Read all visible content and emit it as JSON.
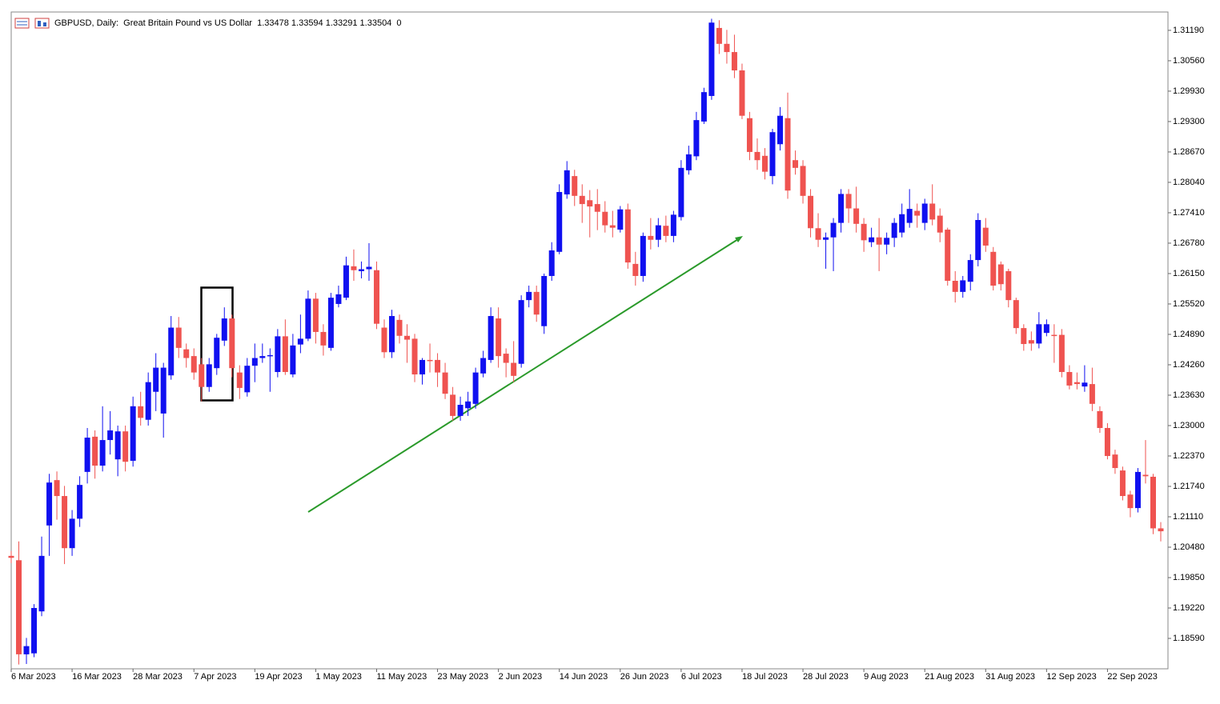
{
  "chart_data": {
    "type": "candlestick",
    "title": "GBPUSD, Daily:  Great Britain Pound vs US Dollar  1.33478 1.33594 1.33291 1.33504  0",
    "up_color": "#1010f0",
    "down_color": "#ef5350",
    "categories": [
      "6 Mar 2023",
      null,
      null,
      null,
      null,
      null,
      null,
      null,
      "16 Mar 2023",
      null,
      null,
      null,
      null,
      null,
      null,
      null,
      "28 Mar 2023",
      null,
      null,
      null,
      null,
      null,
      null,
      null,
      "7 Apr 2023",
      null,
      null,
      null,
      null,
      null,
      null,
      null,
      "19 Apr 2023",
      null,
      null,
      null,
      null,
      null,
      null,
      null,
      "1 May 2023",
      null,
      null,
      null,
      null,
      null,
      null,
      null,
      "11 May 2023",
      null,
      null,
      null,
      null,
      null,
      null,
      null,
      "23 May 2023",
      null,
      null,
      null,
      null,
      null,
      null,
      null,
      "2 Jun 2023",
      null,
      null,
      null,
      null,
      null,
      null,
      null,
      "14 Jun 2023",
      null,
      null,
      null,
      null,
      null,
      null,
      null,
      "26 Jun 2023",
      null,
      null,
      null,
      null,
      null,
      null,
      null,
      "6 Jul 2023",
      null,
      null,
      null,
      null,
      null,
      null,
      null,
      "18 Jul 2023",
      null,
      null,
      null,
      null,
      null,
      null,
      null,
      "28 Jul 2023",
      null,
      null,
      null,
      null,
      null,
      null,
      null,
      "9 Aug 2023",
      null,
      null,
      null,
      null,
      null,
      null,
      null,
      "21 Aug 2023",
      null,
      null,
      null,
      null,
      null,
      null,
      null,
      "31 Aug 2023",
      null,
      null,
      null,
      null,
      null,
      null,
      null,
      "12 Sep 2023",
      null,
      null,
      null,
      null,
      null,
      null,
      null,
      "22 Sep 2023",
      null,
      null,
      null,
      null,
      null,
      null,
      null
    ],
    "open": [
      1.203,
      1.2021,
      1.1826,
      1.1828,
      1.1915,
      1.2093,
      1.2187,
      1.2154,
      1.2046,
      1.2107,
      1.2204,
      1.2277,
      1.2217,
      1.227,
      1.223,
      1.2288,
      1.2227,
      1.234,
      1.2312,
      1.237,
      1.2325,
      1.2404,
      1.2503,
      1.2458,
      1.2444,
      1.2427,
      1.238,
      1.2419,
      1.2476,
      1.2522,
      1.241,
      1.2369,
      1.2424,
      1.244,
      1.2444,
      1.2411,
      1.2485,
      1.2406,
      1.2468,
      1.248,
      1.2563,
      1.2494,
      1.2461,
      1.2552,
      1.2565,
      1.263,
      1.262,
      1.2624,
      1.2622,
      1.2503,
      1.2452,
      1.2519,
      1.2486,
      1.248,
      1.2406,
      1.2436,
      1.2436,
      1.241,
      1.2364,
      1.232,
      1.2336,
      1.2345,
      1.2408,
      1.2436,
      1.2522,
      1.2449,
      1.243,
      1.2428,
      1.256,
      1.2577,
      1.2506,
      1.261,
      1.266,
      1.2779,
      1.2817,
      1.2776,
      1.2767,
      1.2759,
      1.2743,
      1.2715,
      1.2706,
      1.2748,
      1.2635,
      1.261,
      1.2693,
      1.2685,
      1.2714,
      1.2693,
      1.2732,
      1.2829,
      1.2858,
      1.293,
      1.2983,
      1.3124,
      1.3091,
      1.3074,
      1.3036,
      1.2937,
      1.2867,
      1.2859,
      1.2817,
      1.2883,
      1.2937,
      1.285,
      1.2838,
      1.2776,
      1.2709,
      1.2685,
      1.269,
      1.272,
      1.278,
      1.275,
      1.2718,
      1.268,
      1.269,
      1.2675,
      1.2689,
      1.27,
      1.272,
      1.2745,
      1.272,
      1.276,
      1.2735,
      1.2706,
      1.26,
      1.2577,
      1.2598,
      1.2643,
      1.271,
      1.266,
      1.2634,
      1.262,
      1.256,
      1.2502,
      1.2477,
      1.247,
      1.2492,
      1.2488,
      1.2488,
      1.2411,
      1.239,
      1.2381,
      1.2386,
      1.233,
      1.2295,
      1.224,
      1.2207,
      1.2157,
      1.2129,
      1.2198,
      1.2194,
      1.2087
    ],
    "high": [
      1.204,
      1.206,
      1.186,
      1.193,
      1.207,
      1.22,
      1.2205,
      1.2175,
      1.2125,
      1.2195,
      1.2295,
      1.229,
      1.234,
      1.233,
      1.23,
      1.23,
      1.236,
      1.237,
      1.241,
      1.245,
      1.243,
      1.2527,
      1.2525,
      1.247,
      1.246,
      1.244,
      1.244,
      1.249,
      1.2545,
      1.253,
      1.2425,
      1.244,
      1.247,
      1.247,
      1.246,
      1.25,
      1.252,
      1.249,
      1.253,
      1.258,
      1.2575,
      1.251,
      1.2575,
      1.259,
      1.265,
      1.2665,
      1.264,
      1.2678,
      1.264,
      1.252,
      1.254,
      1.253,
      1.251,
      1.249,
      1.244,
      1.247,
      1.245,
      1.243,
      1.238,
      1.236,
      1.237,
      1.242,
      1.2455,
      1.2545,
      1.2545,
      1.246,
      1.2475,
      1.257,
      1.259,
      1.259,
      1.2615,
      1.268,
      1.28,
      1.2848,
      1.283,
      1.28,
      1.2788,
      1.279,
      1.2765,
      1.2745,
      1.2755,
      1.276,
      1.266,
      1.27,
      1.273,
      1.273,
      1.2735,
      1.2745,
      1.285,
      1.288,
      1.295,
      1.3,
      1.3143,
      1.314,
      1.312,
      1.311,
      1.305,
      1.295,
      1.2895,
      1.2875,
      1.2915,
      1.296,
      1.299,
      1.287,
      1.285,
      1.279,
      1.274,
      1.27,
      1.273,
      1.279,
      1.279,
      1.2795,
      1.273,
      1.271,
      1.273,
      1.27,
      1.273,
      1.276,
      1.279,
      1.276,
      1.277,
      1.28,
      1.275,
      1.271,
      1.262,
      1.261,
      1.2655,
      1.274,
      1.273,
      1.267,
      1.264,
      1.2625,
      1.2565,
      1.251,
      1.2495,
      1.2535,
      1.252,
      1.251,
      1.25,
      1.2425,
      1.241,
      1.2425,
      1.242,
      1.234,
      1.2305,
      1.225,
      1.2215,
      1.2165,
      1.2212,
      1.227,
      1.22,
      1.21
    ],
    "low": [
      1.2015,
      1.1805,
      1.1806,
      1.182,
      1.1905,
      1.203,
      1.2105,
      1.2013,
      1.203,
      1.209,
      1.218,
      1.219,
      1.2205,
      1.224,
      1.2195,
      1.2205,
      1.2215,
      1.23,
      1.23,
      1.233,
      1.2275,
      1.2395,
      1.244,
      1.242,
      1.2395,
      1.235,
      1.237,
      1.2405,
      1.2465,
      1.24,
      1.2355,
      1.236,
      1.239,
      1.243,
      1.237,
      1.24,
      1.2405,
      1.24,
      1.245,
      1.2475,
      1.247,
      1.2445,
      1.2455,
      1.2545,
      1.256,
      1.26,
      1.2605,
      1.26,
      1.25,
      1.244,
      1.244,
      1.247,
      1.243,
      1.239,
      1.2385,
      1.241,
      1.238,
      1.2355,
      1.231,
      1.231,
      1.232,
      1.2335,
      1.24,
      1.243,
      1.242,
      1.24,
      1.239,
      1.242,
      1.2545,
      1.2515,
      1.249,
      1.26,
      1.2655,
      1.277,
      1.2755,
      1.272,
      1.269,
      1.2705,
      1.27,
      1.269,
      1.27,
      1.2625,
      1.259,
      1.2598,
      1.2665,
      1.267,
      1.268,
      1.268,
      1.2725,
      1.282,
      1.285,
      1.2925,
      1.2975,
      1.307,
      1.305,
      1.302,
      1.2935,
      1.285,
      1.283,
      1.281,
      1.28,
      1.287,
      1.277,
      1.282,
      1.276,
      1.269,
      1.267,
      1.2625,
      1.262,
      1.27,
      1.272,
      1.27,
      1.266,
      1.267,
      1.262,
      1.2655,
      1.267,
      1.269,
      1.271,
      1.271,
      1.2705,
      1.2715,
      1.268,
      1.259,
      1.2555,
      1.2565,
      1.258,
      1.263,
      1.266,
      1.258,
      1.258,
      1.2545,
      1.249,
      1.2455,
      1.2455,
      1.246,
      1.2485,
      1.243,
      1.24,
      1.2375,
      1.2375,
      1.237,
      1.233,
      1.2285,
      1.223,
      1.22,
      1.2145,
      1.211,
      1.212,
      1.218,
      1.2075,
      1.206
    ],
    "close": [
      1.2026,
      1.1826,
      1.1843,
      1.1922,
      1.203,
      1.2182,
      1.2154,
      1.2046,
      1.2107,
      1.2177,
      1.2275,
      1.2217,
      1.227,
      1.229,
      1.2288,
      1.2225,
      1.234,
      1.2316,
      1.239,
      1.242,
      1.242,
      1.2503,
      1.2461,
      1.244,
      1.241,
      1.238,
      1.2427,
      1.2482,
      1.2522,
      1.2419,
      1.2378,
      1.2424,
      1.244,
      1.2444,
      1.2446,
      1.2485,
      1.2411,
      1.2466,
      1.248,
      1.2563,
      1.2494,
      1.2466,
      1.2565,
      1.2572,
      1.2632,
      1.2622,
      1.2624,
      1.2629,
      1.2511,
      1.2452,
      1.2527,
      1.2486,
      1.2478,
      1.2406,
      1.2436,
      1.2434,
      1.241,
      1.2366,
      1.232,
      1.2343,
      1.235,
      1.241,
      1.244,
      1.2527,
      1.2444,
      1.243,
      1.2403,
      1.256,
      1.2577,
      1.253,
      1.261,
      1.2663,
      1.2784,
      1.2829,
      1.2776,
      1.2759,
      1.2754,
      1.2743,
      1.2715,
      1.271,
      1.2748,
      1.2638,
      1.261,
      1.2693,
      1.2685,
      1.2715,
      1.2693,
      1.2737,
      1.2834,
      1.2862,
      1.2933,
      1.2991,
      1.3135,
      1.3091,
      1.3074,
      1.3036,
      1.2942,
      1.2867,
      1.285,
      1.2826,
      1.2908,
      1.2942,
      1.2787,
      1.2834,
      1.2776,
      1.2709,
      1.2685,
      1.269,
      1.272,
      1.278,
      1.275,
      1.2718,
      1.2684,
      1.269,
      1.2675,
      1.2689,
      1.272,
      1.2738,
      1.2749,
      1.2735,
      1.276,
      1.2727,
      1.27,
      1.26,
      1.2577,
      1.2601,
      1.2643,
      1.2726,
      1.2673,
      1.259,
      1.2593,
      1.256,
      1.2502,
      1.2469,
      1.247,
      1.251,
      1.251,
      1.2486,
      1.2411,
      1.2383,
      1.2386,
      1.2389,
      1.2345,
      1.2295,
      1.2237,
      1.2212,
      1.2154,
      1.2129,
      1.2204,
      1.2195,
      1.2087,
      1.2081
    ],
    "ylim": [
      1.1796,
      1.3157
    ],
    "yticks": [
      {
        "value": 1.3119,
        "label": "1.31190"
      },
      {
        "value": 1.3056,
        "label": "1.30560"
      },
      {
        "value": 1.2993,
        "label": "1.29930"
      },
      {
        "value": 1.293,
        "label": "1.29300"
      },
      {
        "value": 1.2867,
        "label": "1.28670"
      },
      {
        "value": 1.2804,
        "label": "1.28040"
      },
      {
        "value": 1.2741,
        "label": "1.27410"
      },
      {
        "value": 1.2678,
        "label": "1.26780"
      },
      {
        "value": 1.2615,
        "label": "1.26150"
      },
      {
        "value": 1.2552,
        "label": "1.25520"
      },
      {
        "value": 1.2489,
        "label": "1.24890"
      },
      {
        "value": 1.2426,
        "label": "1.24260"
      },
      {
        "value": 1.2363,
        "label": "1.23630"
      },
      {
        "value": 1.23,
        "label": "1.23000"
      },
      {
        "value": 1.2237,
        "label": "1.22370"
      },
      {
        "value": 1.2174,
        "label": "1.21740"
      },
      {
        "value": 1.2111,
        "label": "1.21110"
      },
      {
        "value": 1.2048,
        "label": "1.20480"
      },
      {
        "value": 1.1985,
        "label": "1.19850"
      },
      {
        "value": 1.1922,
        "label": "1.19220"
      },
      {
        "value": 1.1859,
        "label": "1.18590"
      }
    ],
    "grid": false
  }
}
